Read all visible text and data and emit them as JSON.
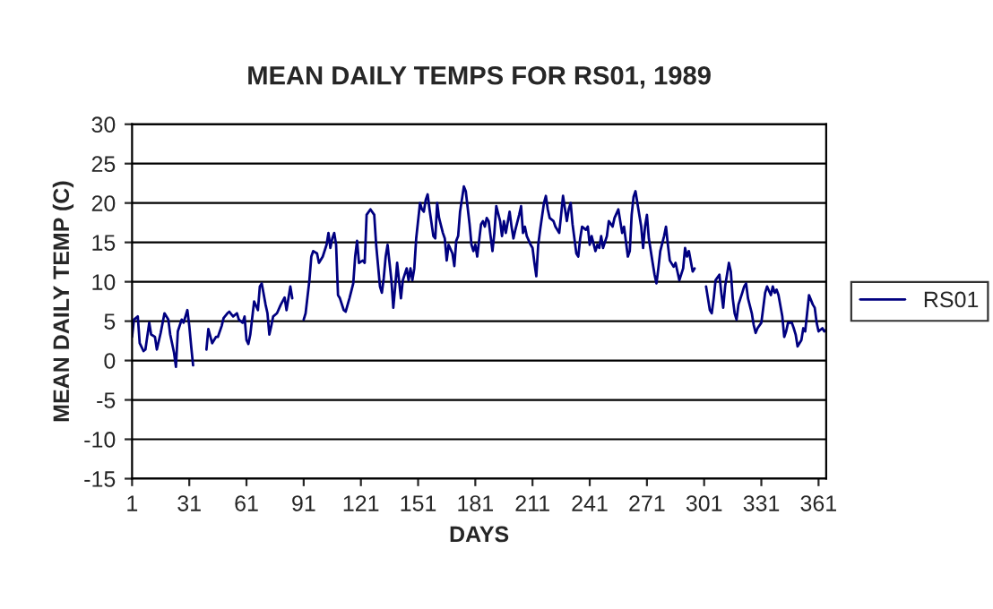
{
  "chart_data": {
    "type": "line",
    "title": "MEAN DAILY TEMPS FOR RS01, 1989",
    "xlabel": "DAYS",
    "ylabel": "MEAN DAILY TEMP (C)",
    "xlim": [
      1,
      365
    ],
    "xticks": [
      1,
      31,
      61,
      91,
      121,
      151,
      181,
      211,
      241,
      271,
      301,
      331,
      361
    ],
    "ylim": [
      -15,
      30
    ],
    "yticks": [
      -15,
      -10,
      -5,
      0,
      5,
      10,
      15,
      20,
      25,
      30
    ],
    "grid": "y",
    "legend": "right",
    "marker": "none",
    "line_style": "solid",
    "series": [
      {
        "name": "RS01",
        "color": "#000080",
        "x": [
          1,
          2,
          4,
          5,
          7,
          8,
          10,
          11,
          13,
          14,
          16,
          18,
          20,
          21,
          23,
          24,
          25,
          27,
          28,
          30,
          31,
          32,
          33,
          35,
          40,
          41,
          43,
          45,
          46,
          48,
          49,
          51,
          52,
          54,
          56,
          57,
          59,
          60,
          61,
          62,
          63,
          65,
          67,
          68,
          69,
          71,
          72,
          73,
          74,
          75,
          77,
          79,
          81,
          82,
          84,
          85,
          87,
          91,
          92,
          94,
          95,
          96,
          98,
          99,
          101,
          103,
          104,
          105,
          106,
          107,
          108,
          109,
          110,
          112,
          113,
          115,
          117,
          118,
          119,
          120,
          122,
          123,
          124,
          126,
          128,
          129,
          131,
          132,
          133,
          134,
          135,
          137,
          138,
          139,
          140,
          142,
          143,
          145,
          146,
          147,
          148,
          149,
          150,
          152,
          153,
          154,
          155,
          156,
          157,
          159,
          160,
          161,
          162,
          164,
          165,
          166,
          167,
          169,
          170,
          171,
          172,
          173,
          175,
          176,
          178,
          179,
          180,
          181,
          182,
          184,
          185,
          186,
          187,
          188,
          190,
          191,
          192,
          194,
          195,
          196,
          197,
          199,
          200,
          201,
          202,
          204,
          205,
          206,
          207,
          208,
          210,
          211,
          212,
          213,
          214,
          215,
          217,
          218,
          219,
          220,
          222,
          223,
          224,
          225,
          226,
          227,
          229,
          230,
          231,
          232,
          234,
          235,
          236,
          237,
          239,
          240,
          241,
          242,
          244,
          245,
          246,
          247,
          248,
          250,
          251,
          253,
          254,
          256,
          257,
          258,
          259,
          261,
          262,
          263,
          264,
          265,
          266,
          268,
          269,
          270,
          271,
          272,
          274,
          275,
          276,
          277,
          278,
          280,
          281,
          282,
          283,
          285,
          286,
          287,
          288,
          290,
          291,
          292,
          293,
          295,
          296,
          298,
          302,
          304,
          305,
          306,
          307,
          309,
          310,
          311,
          312,
          314,
          315,
          316,
          317,
          318,
          319,
          321,
          322,
          323,
          324,
          326,
          327,
          328,
          329,
          331,
          332,
          333,
          334,
          336,
          337,
          338,
          339,
          340,
          342,
          343,
          344,
          345,
          347,
          348,
          349,
          350,
          352,
          353,
          354,
          355,
          356,
          358,
          359,
          360,
          361,
          363,
          364,
          365
        ],
        "values": [
          3,
          5.2,
          5.6,
          2.2,
          1.2,
          1.4,
          4.8,
          3.3,
          3,
          1.4,
          3.5,
          6,
          5.2,
          3.3,
          1,
          -0.8,
          3.7,
          5.2,
          4.8,
          6.4,
          4.4,
          1.8,
          -0.6,
          null,
          1.4,
          4,
          2.2,
          3,
          3,
          4.4,
          5.4,
          6,
          6.2,
          5.6,
          6,
          5.2,
          4.8,
          5.6,
          2.6,
          2.1,
          3.3,
          7.5,
          6.4,
          9.4,
          9.8,
          7.1,
          6,
          3.3,
          4.4,
          5.6,
          6,
          7.1,
          8,
          6.4,
          9.4,
          7.9,
          null,
          5.2,
          6,
          10.2,
          13.2,
          13.9,
          13.6,
          12.4,
          13.2,
          14.7,
          16.2,
          14.3,
          15.5,
          16.2,
          14.7,
          8.3,
          7.9,
          6.4,
          6.2,
          7.9,
          9.8,
          13.2,
          15.2,
          12.4,
          12.7,
          12.4,
          18.5,
          19.2,
          18.5,
          14.7,
          9.4,
          8.6,
          10.5,
          13.2,
          14.7,
          10.2,
          6.7,
          9.4,
          12.4,
          7.9,
          10.2,
          11.7,
          10.2,
          11.7,
          10.2,
          11.7,
          15.5,
          20,
          19.2,
          18.9,
          20.4,
          21.1,
          19.2,
          15.8,
          15.5,
          20,
          18.1,
          16.2,
          15.5,
          12.7,
          14.7,
          13.6,
          12,
          15.2,
          15.8,
          18.9,
          22.1,
          21.5,
          17.3,
          14.7,
          13.9,
          14.7,
          13.2,
          17.3,
          17.7,
          17,
          18.1,
          17.7,
          13.9,
          16.2,
          19.6,
          17.7,
          15.8,
          17.7,
          16.2,
          18.9,
          17,
          15.5,
          16.6,
          18.5,
          19.6,
          16.2,
          17,
          15.8,
          14.7,
          14.3,
          12.4,
          10.7,
          14.7,
          16.6,
          20,
          20.9,
          19.2,
          18.1,
          17.7,
          17,
          16.6,
          16.2,
          18.5,
          20.9,
          17.7,
          19.2,
          20,
          17.3,
          13.6,
          13.2,
          15.5,
          17,
          16.6,
          17,
          14.7,
          15.8,
          13.9,
          14.7,
          14.3,
          15.8,
          14.3,
          15.8,
          17.7,
          17,
          18.1,
          19.2,
          17.7,
          16.2,
          17,
          13.2,
          13.9,
          18.5,
          20.8,
          21.5,
          20,
          17,
          14.3,
          17,
          18.5,
          15.5,
          12.4,
          10.9,
          9.8,
          11.7,
          13.9,
          15.8,
          17,
          14.7,
          12.7,
          11.9,
          12.4,
          11.3,
          10.2,
          11.7,
          14.3,
          13.2,
          13.9,
          11.3,
          11.7,
          null,
          9.4,
          6.4,
          6,
          7.9,
          10.2,
          10.9,
          8.6,
          6.7,
          9.4,
          12.4,
          11.3,
          7.9,
          6,
          5.2,
          7.1,
          8.6,
          9.4,
          9.8,
          7.9,
          6,
          4.5,
          3.5,
          4.1,
          4.8,
          6.7,
          8.6,
          9.4,
          8.3,
          9.4,
          8.6,
          9,
          8.3,
          5.6,
          3,
          3.7,
          4.8,
          4.8,
          4.1,
          3.3,
          1.8,
          2.6,
          4.1,
          3.7,
          6,
          8.3,
          7.1,
          6.7,
          4.8,
          3.7,
          4.1,
          3.7,
          3.9
        ]
      }
    ]
  }
}
